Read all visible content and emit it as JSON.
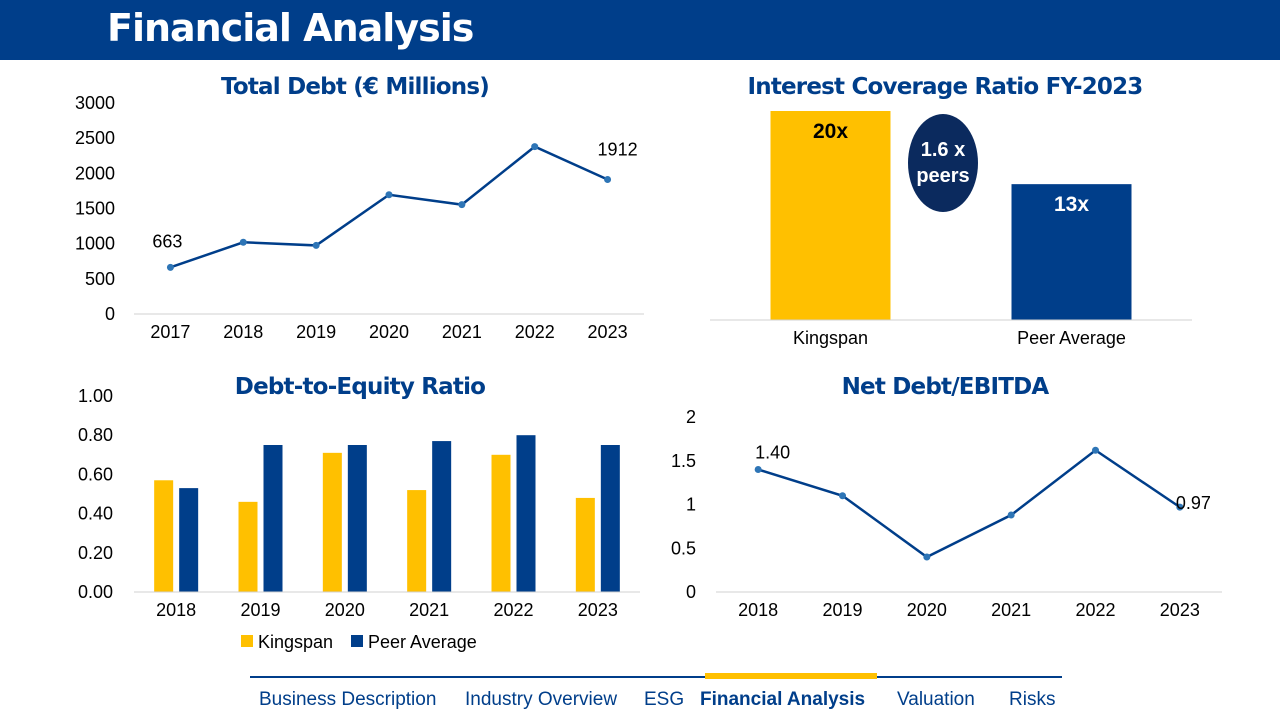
{
  "header": {
    "title": "Financial Analysis"
  },
  "colors": {
    "navy": "#003e8a",
    "gold": "#ffc000",
    "dark_navy": "#0b2a5e"
  },
  "nav": {
    "items": [
      {
        "label": "Business Description"
      },
      {
        "label": "Industry Overview"
      },
      {
        "label": "ESG"
      },
      {
        "label": "Financial Analysis",
        "active": true
      },
      {
        "label": "Valuation"
      },
      {
        "label": "Risks"
      }
    ]
  },
  "chart_data": [
    {
      "id": "total_debt",
      "type": "line",
      "title": "Total Debt (€ Millions)",
      "categories": [
        "2017",
        "2018",
        "2019",
        "2020",
        "2021",
        "2022",
        "2023"
      ],
      "series": [
        {
          "values": [
            663,
            1020,
            975,
            1695,
            1555,
            2380,
            1912
          ]
        }
      ],
      "data_labels": [
        {
          "index": 0,
          "text": "663"
        },
        {
          "index": 6,
          "text": "1912"
        }
      ],
      "ylim": [
        0,
        3000
      ],
      "yticks": [
        "0",
        "500",
        "1000",
        "1500",
        "2000",
        "2500",
        "3000"
      ]
    },
    {
      "id": "interest_coverage",
      "type": "bar",
      "title": "Interest Coverage Ratio FY-2023",
      "categories": [
        "Kingspan",
        "Peer Average"
      ],
      "values": [
        20,
        13
      ],
      "value_labels": [
        "20x",
        "13x"
      ],
      "ylim": [
        0,
        20
      ],
      "callout": {
        "line1": "1.6 x",
        "line2": "peers"
      }
    },
    {
      "id": "debt_to_equity",
      "type": "bar",
      "title": "Debt-to-Equity Ratio",
      "categories": [
        "2018",
        "2019",
        "2020",
        "2021",
        "2022",
        "2023"
      ],
      "series": [
        {
          "name": "Kingspan",
          "values": [
            0.57,
            0.46,
            0.71,
            0.52,
            0.7,
            0.48
          ]
        },
        {
          "name": "Peer Average",
          "values": [
            0.53,
            0.75,
            0.75,
            0.77,
            0.8,
            0.75
          ]
        }
      ],
      "ylim": [
        0,
        1.0
      ],
      "yticks": [
        "0.00",
        "0.20",
        "0.40",
        "0.60",
        "0.80",
        "1.00"
      ],
      "legend": "bottom"
    },
    {
      "id": "net_debt_ebitda",
      "type": "line",
      "title": "Net Debt/EBITDA",
      "categories": [
        "2018",
        "2019",
        "2020",
        "2021",
        "2022",
        "2023"
      ],
      "series": [
        {
          "values": [
            1.4,
            1.1,
            0.4,
            0.88,
            1.62,
            0.97
          ]
        }
      ],
      "data_labels": [
        {
          "index": 0,
          "text": "1.40"
        },
        {
          "index": 5,
          "text": "0.97"
        }
      ],
      "ylim": [
        0,
        2
      ],
      "yticks": [
        "0",
        "0.5",
        "1",
        "1.5",
        "2"
      ]
    }
  ]
}
